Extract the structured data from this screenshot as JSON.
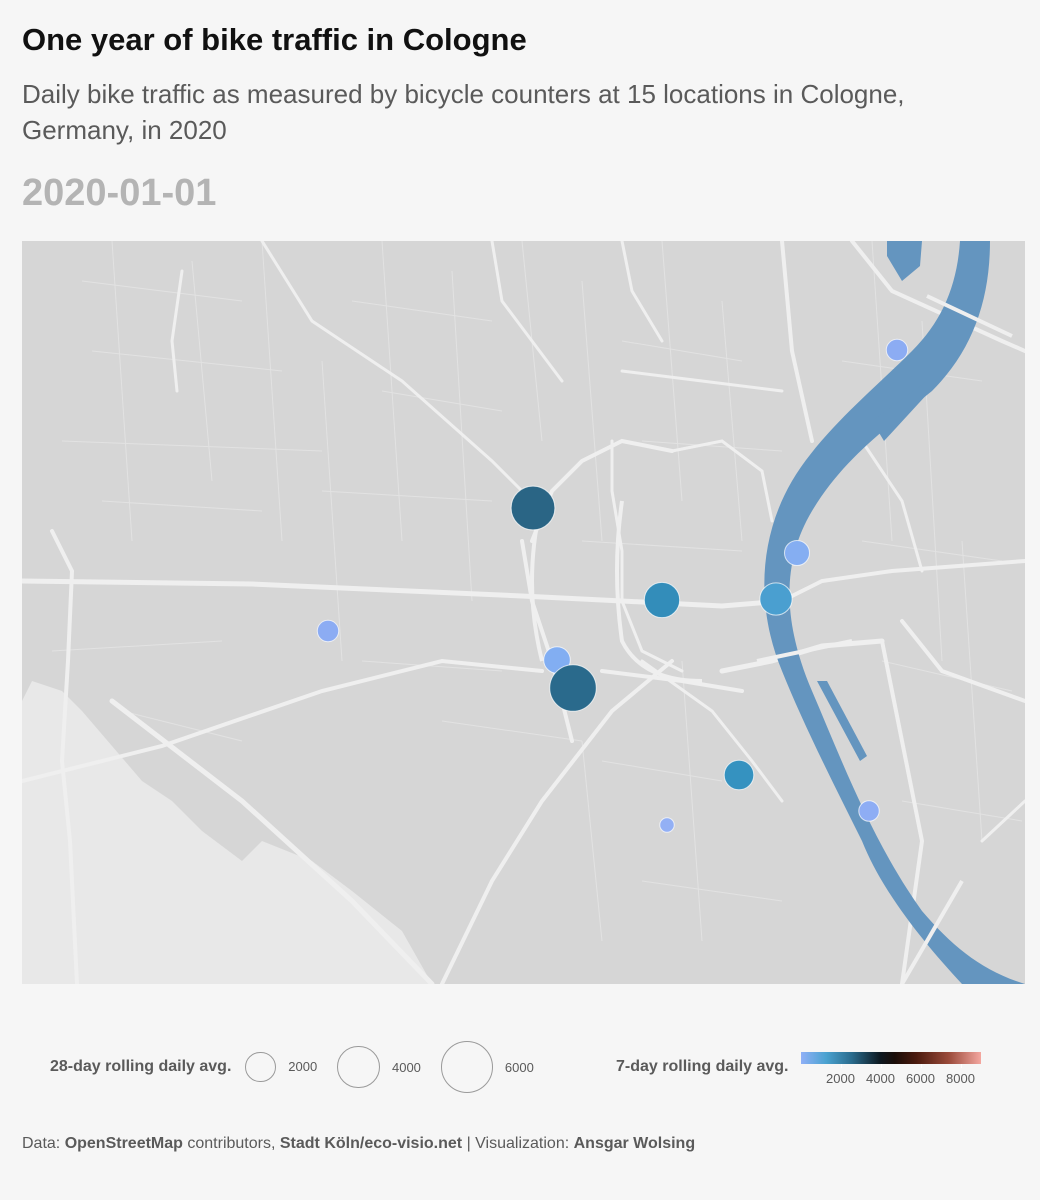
{
  "header": {
    "title": "One year of bike traffic in Cologne",
    "subtitle": "Daily bike traffic as measured by bicycle counters at 15 locations in Cologne, Germany, in 2020",
    "date": "2020-01-01"
  },
  "map": {
    "land_color": "#d6d6d6",
    "road_color": "#eeeeee",
    "river_color": "#6495bf",
    "counters": [
      {
        "size_value": 4600,
        "color_value": 2700,
        "color": "#2a6585"
      },
      {
        "size_value": 3000,
        "color_value": 2100,
        "color": "#338dba"
      },
      {
        "size_value": 2500,
        "color_value": 1400,
        "color": "#4a9fd0"
      },
      {
        "size_value": 1700,
        "color_value": 900,
        "color": "#82aef2"
      },
      {
        "size_value": 1500,
        "color_value": 850,
        "color": "#85aef2"
      },
      {
        "size_value": 5200,
        "color_value": 2600,
        "color": "#2a6a8c"
      },
      {
        "size_value": 2100,
        "color_value": 1900,
        "color": "#3592c0"
      },
      {
        "size_value": 1100,
        "color_value": 800,
        "color": "#8cacf3"
      },
      {
        "size_value": 1100,
        "color_value": 800,
        "color": "#8cacf3"
      },
      {
        "size_value": 1000,
        "color_value": 780,
        "color": "#8eadf4"
      },
      {
        "size_value": 500,
        "color_value": 700,
        "color": "#93b0f5"
      }
    ]
  },
  "legend": {
    "size_title": "28-day rolling daily avg.",
    "size_items": [
      {
        "value": 2000,
        "label": "2000"
      },
      {
        "value": 4000,
        "label": "4000"
      },
      {
        "value": 6000,
        "label": "6000"
      }
    ],
    "color_title": "7-day rolling daily avg.",
    "color_min": 0,
    "color_max": 9000,
    "color_ticks": [
      {
        "value": 2000,
        "label": "2000"
      },
      {
        "value": 4000,
        "label": "4000"
      },
      {
        "value": 6000,
        "label": "6000"
      },
      {
        "value": 8000,
        "label": "8000"
      }
    ]
  },
  "caption": {
    "prefix": "Data: ",
    "source1": "OpenStreetMap",
    "mid1": " contributors, ",
    "source2": "Stadt Köln/eco-visio.net",
    "mid2": " | Visualization: ",
    "author": "Ansgar Wolsing"
  }
}
